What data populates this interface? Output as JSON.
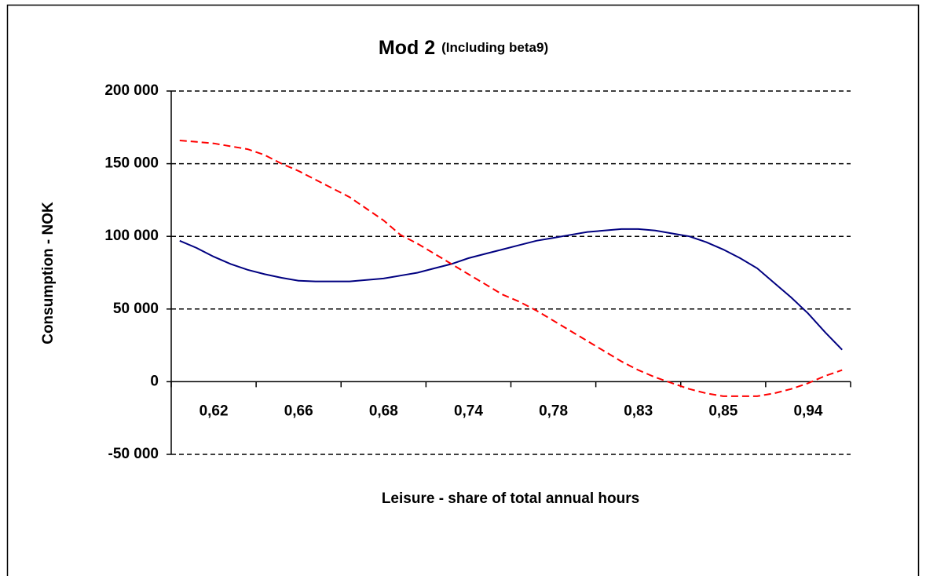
{
  "chart_data": {
    "type": "line",
    "title": "Mod 2",
    "subtitle": "(Including beta9)",
    "x_label": "Leisure - share of total annual hours",
    "y_label": "Consumption - NOK",
    "categories": [
      "0,62",
      null,
      null,
      null,
      null,
      "0,66",
      null,
      null,
      null,
      null,
      "0,68",
      null,
      null,
      null,
      null,
      "0,74",
      null,
      null,
      null,
      null,
      "0,78",
      null,
      null,
      null,
      null,
      "0,83",
      null,
      null,
      null,
      null,
      "0,85",
      null,
      null,
      null,
      null,
      "0,94",
      null,
      null,
      null,
      null
    ],
    "series": [
      {
        "name": null,
        "color": "#000080",
        "dash": false,
        "values": [
          97000,
          92000,
          86000,
          81000,
          77000,
          74000,
          71500,
          69500,
          69000,
          69000,
          69000,
          70000,
          71000,
          73000,
          75000,
          78000,
          81000,
          85000,
          88000,
          91000,
          94000,
          97000,
          99000,
          101000,
          103000,
          104000,
          105000,
          105000,
          104000,
          102000,
          100000,
          96000,
          91000,
          85000,
          78000,
          68000,
          58000,
          47000,
          34000,
          22000
        ]
      },
      {
        "name": null,
        "color": "#ff0000",
        "dash": true,
        "values": [
          166000,
          165000,
          164000,
          162000,
          160000,
          156000,
          150000,
          145000,
          139000,
          133000,
          127000,
          119000,
          111000,
          101000,
          95000,
          88000,
          81000,
          74000,
          67000,
          60000,
          55000,
          49000,
          42000,
          35000,
          28000,
          21000,
          14000,
          8000,
          3000,
          -1000,
          -5000,
          -8000,
          -10000,
          -10000,
          -10000,
          -8000,
          -5000,
          -1000,
          4000,
          8000
        ]
      }
    ],
    "ylim": [
      -50000,
      200000
    ],
    "yticks": [
      {
        "value": -50000,
        "label": "-50 000"
      },
      0,
      {
        "value": 50000,
        "label": "50 000"
      },
      {
        "value": 100000,
        "label": "100 000"
      },
      {
        "value": 150000,
        "label": "150 000"
      },
      {
        "value": 200000,
        "label": "200 000"
      }
    ],
    "grid": true,
    "legend": false
  }
}
